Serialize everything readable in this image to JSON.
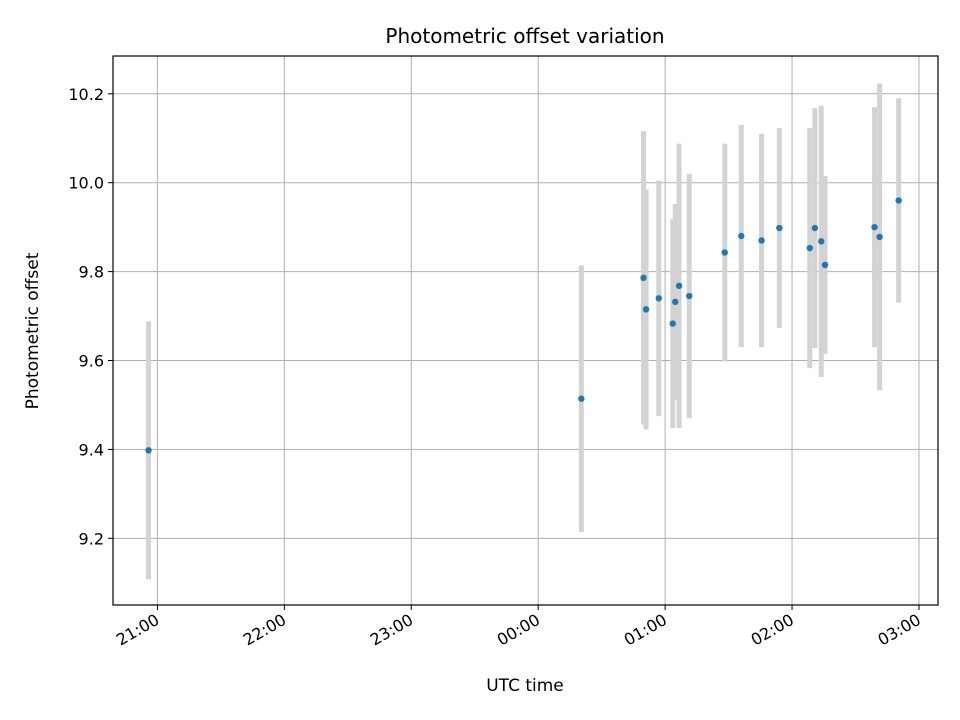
{
  "chart_data": {
    "type": "scatter",
    "title": "Photometric offset variation",
    "xlabel": "UTC time",
    "ylabel": "Photometric offset",
    "x_unit": "hours",
    "xlim": [
      -3.35,
      3.15
    ],
    "ylim": [
      9.05,
      10.285
    ],
    "x_ticks": [
      {
        "x": -3,
        "label": "21:00"
      },
      {
        "x": -2,
        "label": "22:00"
      },
      {
        "x": -1,
        "label": "23:00"
      },
      {
        "x": 0,
        "label": "00:00"
      },
      {
        "x": 1,
        "label": "01:00"
      },
      {
        "x": 2,
        "label": "02:00"
      },
      {
        "x": 3,
        "label": "03:00"
      }
    ],
    "y_ticks": [
      {
        "y": 9.2,
        "label": "9.2"
      },
      {
        "y": 9.4,
        "label": "9.4"
      },
      {
        "y": 9.6,
        "label": "9.6"
      },
      {
        "y": 9.8,
        "label": "9.8"
      },
      {
        "y": 10.0,
        "label": "10.0"
      },
      {
        "y": 10.2,
        "label": "10.2"
      }
    ],
    "grid": true,
    "point_color": "#1f77b4",
    "errorbar_color": "#d3d3d3",
    "points": [
      {
        "x": -3.07,
        "y": 9.398,
        "err": 0.29
      },
      {
        "x": 0.34,
        "y": 9.514,
        "err": 0.3
      },
      {
        "x": 0.83,
        "y": 9.786,
        "err": 0.33
      },
      {
        "x": 0.85,
        "y": 9.715,
        "err": 0.27
      },
      {
        "x": 0.95,
        "y": 9.74,
        "err": 0.265
      },
      {
        "x": 1.06,
        "y": 9.683,
        "err": 0.235
      },
      {
        "x": 1.08,
        "y": 9.732,
        "err": 0.22
      },
      {
        "x": 1.11,
        "y": 9.768,
        "err": 0.32
      },
      {
        "x": 1.19,
        "y": 9.745,
        "err": 0.275
      },
      {
        "x": 1.47,
        "y": 9.843,
        "err": 0.245
      },
      {
        "x": 1.6,
        "y": 9.88,
        "err": 0.25
      },
      {
        "x": 1.76,
        "y": 9.87,
        "err": 0.24
      },
      {
        "x": 1.9,
        "y": 9.898,
        "err": 0.225
      },
      {
        "x": 2.14,
        "y": 9.853,
        "err": 0.27
      },
      {
        "x": 2.18,
        "y": 9.898,
        "err": 0.27
      },
      {
        "x": 2.23,
        "y": 9.868,
        "err": 0.305
      },
      {
        "x": 2.26,
        "y": 9.815,
        "err": 0.2
      },
      {
        "x": 2.65,
        "y": 9.9,
        "err": 0.27
      },
      {
        "x": 2.69,
        "y": 9.878,
        "err": 0.345
      },
      {
        "x": 2.84,
        "y": 9.96,
        "err": 0.23
      }
    ]
  }
}
